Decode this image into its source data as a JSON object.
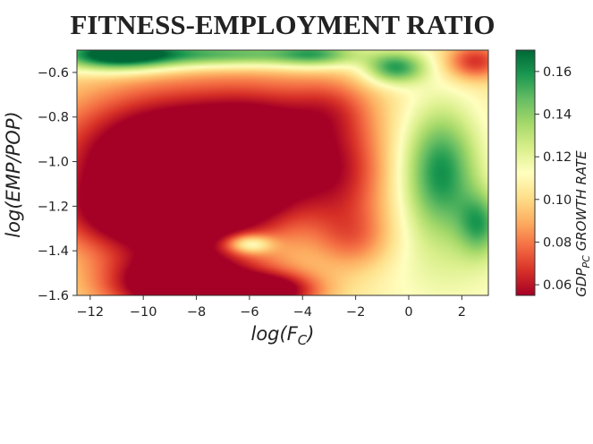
{
  "chart_data": {
    "type": "heatmap",
    "title": "FITNESS-EMPLOYMENT RATIO",
    "xlabel": "log(F",
    "xlabel_sub": "C",
    "xlabel_close": ")",
    "ylabel": "log(EMP/POP)",
    "colorbar_label": "GDP",
    "colorbar_label_sub": "PC",
    "colorbar_label_rest": " GROWTH RATE",
    "xlim": [
      -12.5,
      3
    ],
    "ylim": [
      -1.6,
      -0.5
    ],
    "x_ticks": [
      -12,
      -10,
      -8,
      -6,
      -4,
      -2,
      0,
      2
    ],
    "x_tick_labels": [
      "−12",
      "−10",
      "−8",
      "−6",
      "−4",
      "−2",
      "0",
      "2"
    ],
    "y_ticks": [
      -0.6,
      -0.8,
      -1.0,
      -1.2,
      -1.4,
      -1.6
    ],
    "y_tick_labels": [
      "−0.6",
      "−0.8",
      "−1.0",
      "−1.2",
      "−1.4",
      "−1.6"
    ],
    "colorbar_range": [
      0.055,
      0.17
    ],
    "colorbar_ticks": [
      0.06,
      0.08,
      0.1,
      0.12,
      0.14,
      0.16
    ],
    "colorbar_tick_labels": [
      "0.06",
      "0.08",
      "0.10",
      "0.12",
      "0.14",
      "0.16"
    ],
    "colormap": [
      "#a50026",
      "#d73027",
      "#f46d43",
      "#fdae61",
      "#fee08b",
      "#ffffbf",
      "#d9ef8b",
      "#a6d96a",
      "#66bd63",
      "#1a9850",
      "#006837"
    ],
    "grid": false,
    "base_value": 0.106,
    "field_components": [
      {
        "x": -8.5,
        "y": -1.0,
        "sx": 3.2,
        "sy": 0.22,
        "a": -0.09
      },
      {
        "x": -9.5,
        "y": -1.25,
        "sx": 2.5,
        "sy": 0.12,
        "a": -0.045
      },
      {
        "x": -5.5,
        "y": -0.95,
        "sx": 1.5,
        "sy": 0.2,
        "a": -0.03
      },
      {
        "x": -8.5,
        "y": -1.55,
        "sx": 2.0,
        "sy": 0.1,
        "a": -0.08
      },
      {
        "x": -5.0,
        "y": -1.58,
        "sx": 1.2,
        "sy": 0.06,
        "a": -0.05
      },
      {
        "x": -3.0,
        "y": -0.75,
        "sx": 1.2,
        "sy": 0.1,
        "a": -0.02
      },
      {
        "x": -2.5,
        "y": -1.05,
        "sx": 1.2,
        "sy": 0.2,
        "a": -0.03
      },
      {
        "x": -2.0,
        "y": -1.35,
        "sx": 1.0,
        "sy": 0.1,
        "a": -0.02
      },
      {
        "x": -11.0,
        "y": -0.52,
        "sx": 1.5,
        "sy": 0.05,
        "a": 0.07
      },
      {
        "x": -7.0,
        "y": -0.52,
        "sx": 3.0,
        "sy": 0.04,
        "a": 0.05
      },
      {
        "x": -3.5,
        "y": -0.52,
        "sx": 1.0,
        "sy": 0.04,
        "a": 0.03
      },
      {
        "x": -0.5,
        "y": -0.58,
        "sx": 0.8,
        "sy": 0.05,
        "a": 0.05
      },
      {
        "x": 1.2,
        "y": -1.05,
        "sx": 1.0,
        "sy": 0.2,
        "a": 0.055
      },
      {
        "x": 2.7,
        "y": -1.28,
        "sx": 0.6,
        "sy": 0.1,
        "a": 0.04
      },
      {
        "x": 1.5,
        "y": -1.5,
        "sx": 2.0,
        "sy": 0.15,
        "a": 0.01
      },
      {
        "x": -6.0,
        "y": -1.37,
        "sx": 0.6,
        "sy": 0.03,
        "a": 0.04
      },
      {
        "x": 2.5,
        "y": -0.55,
        "sx": 0.8,
        "sy": 0.06,
        "a": -0.04
      }
    ]
  }
}
